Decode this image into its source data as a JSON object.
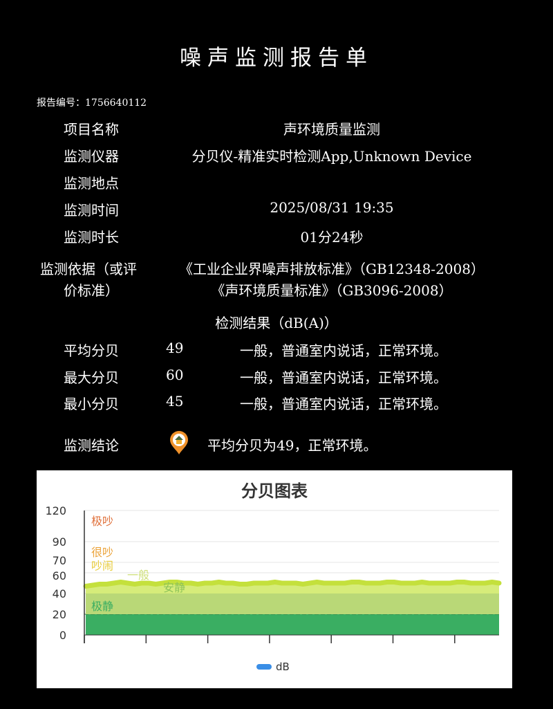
{
  "title": "噪声监测报告单",
  "report_no": "报告编号：1756640112",
  "fields": [
    {
      "label": "项目名称",
      "value": "声环境质量监测"
    },
    {
      "label": "监测仪器",
      "value": "分贝仪-精准实时检测App,Unknown Device"
    },
    {
      "label": "监测地点",
      "value": ""
    },
    {
      "label": "监测时间",
      "value": "2025/08/31 19:35"
    },
    {
      "label": "监测时长",
      "value": "01分24秒"
    }
  ],
  "basis": {
    "label_line1": "监测依据（或评",
    "label_line2": "价标准）",
    "standard1": "《工业企业界噪声排放标准》（GB12348-2008）",
    "standard2": "《声环境质量标准》（GB3096-2008）"
  },
  "results_header": "检测结果（dB(A)）",
  "results": [
    {
      "label": "平均分贝",
      "value": "49",
      "desc": "一般，普通室内说话，正常环境。"
    },
    {
      "label": "最大分贝",
      "value": "60",
      "desc": "一般，普通室内说话，正常环境。"
    },
    {
      "label": "最小分贝",
      "value": "45",
      "desc": "一般，普通室内说话，正常环境。"
    }
  ],
  "conclusion": {
    "label": "监测结论",
    "icon": "location-home-pin-icon",
    "icon_color": "#f0922b",
    "text": "平均分贝为49，正常环境。"
  },
  "chart_data": {
    "type": "area",
    "title": "分贝图表",
    "ylim": [
      0,
      120
    ],
    "yticks": [
      "0",
      "20",
      "40",
      "60",
      "70",
      "90",
      "120"
    ],
    "grid": true,
    "legend": {
      "position": "bottom",
      "entries": [
        "dB"
      ]
    },
    "series_color": "#c4e03c",
    "bands": [
      {
        "label": "极吵",
        "from": 90,
        "to": 120,
        "color": "#e0703a"
      },
      {
        "label": "很吵",
        "from": 70,
        "to": 90,
        "color": "#eba33a"
      },
      {
        "label": "吵闹",
        "from": 60,
        "to": 70,
        "color": "#e8cc3a"
      },
      {
        "label": "一般",
        "from": 40,
        "to": 60,
        "color": "#cfe07a"
      },
      {
        "label": "安静",
        "from": 20,
        "to": 40,
        "color": "#8dc35a"
      },
      {
        "label": "极静",
        "from": 0,
        "to": 20,
        "color": "#3aae62"
      }
    ],
    "series": [
      {
        "name": "dB",
        "values": [
          47,
          48,
          49,
          49,
          50,
          51,
          50,
          49,
          50,
          50,
          49,
          50,
          51,
          51,
          50,
          50,
          49,
          50,
          50,
          51,
          50,
          50,
          49,
          49,
          50,
          50,
          50,
          51,
          50,
          50,
          50,
          49,
          50,
          51,
          50,
          50,
          50,
          50,
          51,
          51,
          50,
          50,
          50,
          51,
          51,
          50,
          50,
          50,
          51,
          50,
          50,
          50,
          50,
          51,
          51,
          50,
          50,
          50,
          51,
          50
        ]
      }
    ]
  }
}
